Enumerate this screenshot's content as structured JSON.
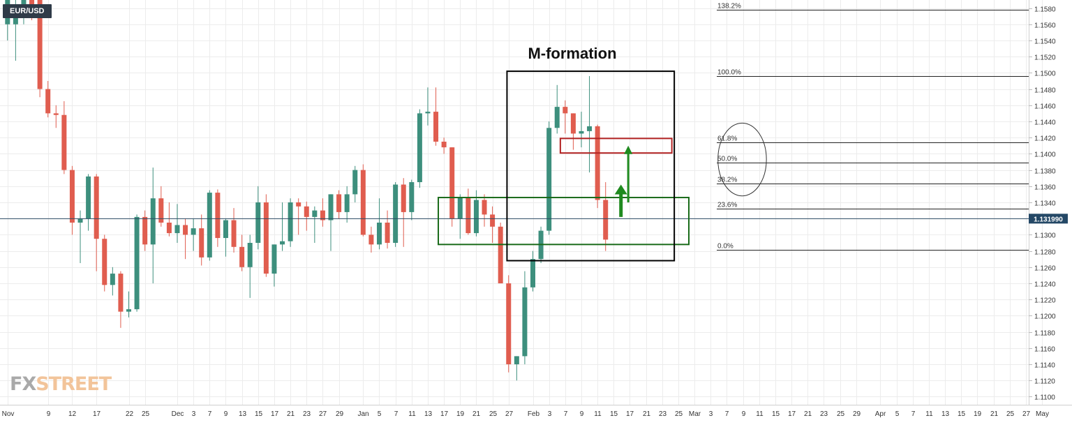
{
  "app": {
    "symbol": "EUR/USD",
    "brand_prefix": "FX",
    "brand_suffix": "STREET"
  },
  "colors": {
    "bull": "#3d8f7d",
    "bear": "#e05d4f",
    "grid": "#ececec",
    "axis_text": "#333333",
    "price_line": "#2b4a63",
    "price_badge": "#244866",
    "fib_line": "#222222",
    "box_black": "#000000",
    "box_green": "#1a6b1a",
    "box_red": "#b22222",
    "arrow_green": "#1f8a1f"
  },
  "chart_data": {
    "type": "candlestick",
    "title": "M-formation",
    "symbol": "EUR/USD",
    "timeframe": "daily",
    "current_price": 1.13199,
    "current_price_label": "1.131990",
    "ylim": [
      1.109,
      1.159
    ],
    "y_ticks": [
      1.11,
      1.112,
      1.114,
      1.116,
      1.118,
      1.12,
      1.122,
      1.124,
      1.126,
      1.128,
      1.13,
      1.132,
      1.134,
      1.136,
      1.138,
      1.14,
      1.142,
      1.144,
      1.146,
      1.148,
      1.15,
      1.152,
      1.154,
      1.156,
      1.158
    ],
    "x_ticks": [
      {
        "i": 0,
        "label": "Nov"
      },
      {
        "i": 5,
        "label": "9"
      },
      {
        "i": 8,
        "label": "12"
      },
      {
        "i": 11,
        "label": "17"
      },
      {
        "i": 15,
        "label": "22"
      },
      {
        "i": 17,
        "label": "25"
      },
      {
        "i": 21,
        "label": "Dec"
      },
      {
        "i": 23,
        "label": "3"
      },
      {
        "i": 25,
        "label": "7"
      },
      {
        "i": 27,
        "label": "9"
      },
      {
        "i": 29,
        "label": "13"
      },
      {
        "i": 31,
        "label": "15"
      },
      {
        "i": 33,
        "label": "17"
      },
      {
        "i": 35,
        "label": "21"
      },
      {
        "i": 37,
        "label": "23"
      },
      {
        "i": 39,
        "label": "27"
      },
      {
        "i": 41,
        "label": "29"
      },
      {
        "i": 44,
        "label": "Jan"
      },
      {
        "i": 46,
        "label": "5"
      },
      {
        "i": 48,
        "label": "7"
      },
      {
        "i": 50,
        "label": "11"
      },
      {
        "i": 52,
        "label": "13"
      },
      {
        "i": 54,
        "label": "17"
      },
      {
        "i": 56,
        "label": "19"
      },
      {
        "i": 58,
        "label": "21"
      },
      {
        "i": 60,
        "label": "25"
      },
      {
        "i": 62,
        "label": "27"
      },
      {
        "i": 65,
        "label": "Feb"
      },
      {
        "i": 67,
        "label": "3"
      },
      {
        "i": 69,
        "label": "7"
      },
      {
        "i": 71,
        "label": "9"
      },
      {
        "i": 73,
        "label": "11"
      },
      {
        "i": 75,
        "label": "15"
      },
      {
        "i": 77,
        "label": "17"
      },
      {
        "i": 79,
        "label": "21"
      },
      {
        "i": 81,
        "label": "23"
      },
      {
        "i": 83,
        "label": "25"
      },
      {
        "i": 85,
        "label": "Mar"
      },
      {
        "i": 87,
        "label": "3"
      },
      {
        "i": 89,
        "label": "7"
      },
      {
        "i": 91,
        "label": "9"
      },
      {
        "i": 93,
        "label": "11"
      },
      {
        "i": 95,
        "label": "15"
      },
      {
        "i": 97,
        "label": "17"
      },
      {
        "i": 99,
        "label": "21"
      },
      {
        "i": 101,
        "label": "23"
      },
      {
        "i": 103,
        "label": "25"
      },
      {
        "i": 105,
        "label": "29"
      },
      {
        "i": 108,
        "label": "Apr"
      },
      {
        "i": 110,
        "label": "5"
      },
      {
        "i": 112,
        "label": "7"
      },
      {
        "i": 114,
        "label": "11"
      },
      {
        "i": 116,
        "label": "13"
      },
      {
        "i": 118,
        "label": "15"
      },
      {
        "i": 120,
        "label": "19"
      },
      {
        "i": 122,
        "label": "21"
      },
      {
        "i": 124,
        "label": "25"
      },
      {
        "i": 126,
        "label": "27"
      },
      {
        "i": 128,
        "label": "May"
      }
    ],
    "candles": [
      [
        1.156,
        1.159,
        1.154,
        1.159
      ],
      [
        1.156,
        1.159,
        1.1515,
        1.1575
      ],
      [
        1.1575,
        1.159,
        1.156,
        1.159
      ],
      [
        1.159,
        1.159,
        1.1565,
        1.158
      ],
      [
        1.159,
        1.159,
        1.147,
        1.148
      ],
      [
        1.148,
        1.149,
        1.1445,
        1.145
      ],
      [
        1.145,
        1.146,
        1.1432,
        1.1448
      ],
      [
        1.1448,
        1.1465,
        1.1375,
        1.138
      ],
      [
        1.138,
        1.1385,
        1.13,
        1.1315
      ],
      [
        1.1315,
        1.133,
        1.1265,
        1.132
      ],
      [
        1.132,
        1.1375,
        1.1305,
        1.1372
      ],
      [
        1.1372,
        1.1375,
        1.1255,
        1.1295
      ],
      [
        1.1295,
        1.13,
        1.123,
        1.1238
      ],
      [
        1.1238,
        1.126,
        1.1225,
        1.1252
      ],
      [
        1.1252,
        1.1255,
        1.1185,
        1.1205
      ],
      [
        1.1205,
        1.123,
        1.1198,
        1.1208
      ],
      [
        1.1208,
        1.1325,
        1.1205,
        1.1322
      ],
      [
        1.1322,
        1.133,
        1.128,
        1.1288
      ],
      [
        1.1288,
        1.1383,
        1.124,
        1.1345
      ],
      [
        1.1345,
        1.136,
        1.131,
        1.1315
      ],
      [
        1.1315,
        1.134,
        1.1298,
        1.1302
      ],
      [
        1.1302,
        1.1338,
        1.129,
        1.1312
      ],
      [
        1.1312,
        1.132,
        1.127,
        1.13
      ],
      [
        1.13,
        1.132,
        1.128,
        1.1308
      ],
      [
        1.1308,
        1.1325,
        1.1262,
        1.1272
      ],
      [
        1.1272,
        1.1355,
        1.1268,
        1.1352
      ],
      [
        1.1352,
        1.1356,
        1.1285,
        1.1296
      ],
      [
        1.1296,
        1.132,
        1.1273,
        1.1318
      ],
      [
        1.1318,
        1.1333,
        1.1278,
        1.1285
      ],
      [
        1.1285,
        1.13,
        1.1255,
        1.126
      ],
      [
        1.126,
        1.13,
        1.1222,
        1.129
      ],
      [
        1.129,
        1.136,
        1.1282,
        1.134
      ],
      [
        1.134,
        1.135,
        1.1248,
        1.1252
      ],
      [
        1.1252,
        1.1285,
        1.1236,
        1.1288
      ],
      [
        1.1288,
        1.134,
        1.128,
        1.1292
      ],
      [
        1.1292,
        1.1345,
        1.1285,
        1.134
      ],
      [
        1.134,
        1.1345,
        1.13,
        1.1335
      ],
      [
        1.1335,
        1.1341,
        1.1305,
        1.1322
      ],
      [
        1.1322,
        1.1335,
        1.129,
        1.133
      ],
      [
        1.133,
        1.1345,
        1.131,
        1.1318
      ],
      [
        1.1318,
        1.133,
        1.128,
        1.135
      ],
      [
        1.135,
        1.1355,
        1.132,
        1.1328
      ],
      [
        1.1328,
        1.136,
        1.1315,
        1.135
      ],
      [
        1.135,
        1.1385,
        1.134,
        1.138
      ],
      [
        1.138,
        1.1387,
        1.1298,
        1.13
      ],
      [
        1.13,
        1.131,
        1.1278,
        1.1288
      ],
      [
        1.1288,
        1.1345,
        1.1282,
        1.1315
      ],
      [
        1.1315,
        1.133,
        1.1283,
        1.129
      ],
      [
        1.129,
        1.1365,
        1.1285,
        1.1362
      ],
      [
        1.1362,
        1.137,
        1.1285,
        1.1328
      ],
      [
        1.1328,
        1.1368,
        1.1318,
        1.1365
      ],
      [
        1.1365,
        1.1455,
        1.1358,
        1.145
      ],
      [
        1.145,
        1.1482,
        1.1435,
        1.1452
      ],
      [
        1.1452,
        1.1482,
        1.141,
        1.1415
      ],
      [
        1.1415,
        1.142,
        1.14,
        1.1408
      ],
      [
        1.1408,
        1.1395,
        1.131,
        1.132
      ],
      [
        1.132,
        1.135,
        1.1295,
        1.1346
      ],
      [
        1.1346,
        1.1357,
        1.13,
        1.1302
      ],
      [
        1.1302,
        1.1355,
        1.1298,
        1.1343
      ],
      [
        1.1343,
        1.135,
        1.131,
        1.1325
      ],
      [
        1.1325,
        1.1335,
        1.129,
        1.131
      ],
      [
        1.131,
        1.1315,
        1.126,
        1.124
      ],
      [
        1.124,
        1.125,
        1.113,
        1.114
      ],
      [
        1.114,
        1.115,
        1.112,
        1.115
      ],
      [
        1.115,
        1.1255,
        1.114,
        1.1235
      ],
      [
        1.1235,
        1.128,
        1.123,
        1.127
      ],
      [
        1.127,
        1.131,
        1.1265,
        1.1305
      ],
      [
        1.1305,
        1.144,
        1.13,
        1.1432
      ],
      [
        1.1432,
        1.1485,
        1.1425,
        1.1458
      ],
      [
        1.1458,
        1.1466,
        1.1425,
        1.145
      ],
      [
        1.145,
        1.144,
        1.1405,
        1.1425
      ],
      [
        1.1425,
        1.1452,
        1.1408,
        1.1428
      ],
      [
        1.1428,
        1.1496,
        1.1377,
        1.1434
      ],
      [
        1.1434,
        1.1436,
        1.1333,
        1.1343
      ],
      [
        1.1343,
        1.1365,
        1.128,
        1.1294
      ],
      null,
      null,
      null,
      null,
      null,
      null,
      null,
      null,
      null,
      null,
      null,
      null,
      null,
      null,
      null,
      null,
      null,
      null,
      null,
      null,
      null,
      null,
      null,
      null,
      null,
      null,
      null,
      null,
      null,
      null,
      null,
      null,
      null,
      null,
      null,
      null,
      null,
      null,
      null,
      null,
      null,
      null,
      null,
      null,
      null,
      null,
      null,
      null,
      null,
      null,
      null,
      null,
      null,
      null,
      null
    ],
    "fibonacci": [
      {
        "label": "138.2%",
        "price": 1.1578
      },
      {
        "label": "100.0%",
        "price": 1.1496
      },
      {
        "label": "61.8%",
        "price": 1.1414
      },
      {
        "label": "50.0%",
        "price": 1.1389
      },
      {
        "label": "38.2%",
        "price": 1.1363
      },
      {
        "label": "23.6%",
        "price": 1.1332
      },
      {
        "label": "0.0%",
        "price": 1.1281
      }
    ],
    "annotations": {
      "m_box": {
        "i0": 61.8,
        "i1": 82.5,
        "p_top": 1.1502,
        "p_bot": 1.1268
      },
      "green_box": {
        "i0": 53.3,
        "i1": 84.3,
        "p_top": 1.1346,
        "p_bot": 1.1288
      },
      "red_box": {
        "i0": 68.4,
        "i1": 82.2,
        "p_top": 1.1419,
        "p_bot": 1.1401
      },
      "fib_ellipse": {
        "i": 90.9,
        "p": 1.1393,
        "ri": 3.0,
        "rp": 0.0045
      },
      "arrows": [
        {
          "i": 75.9,
          "p_from": 1.1322,
          "p_to": 1.1362
        },
        {
          "i": 76.8,
          "p_from": 1.134,
          "p_to": 1.141
        }
      ]
    }
  }
}
